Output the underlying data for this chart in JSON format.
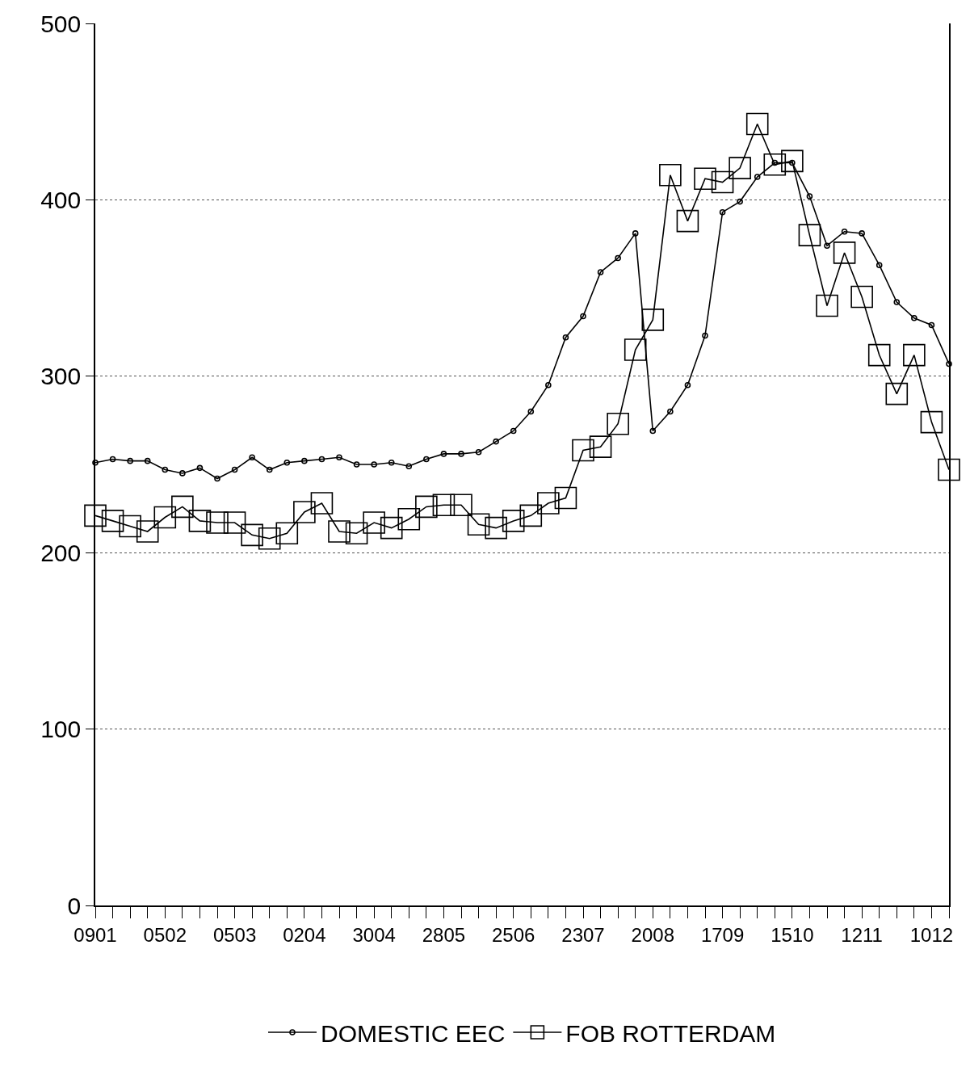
{
  "chart_data": {
    "type": "line",
    "categories": [
      "0901",
      null,
      null,
      null,
      "0502",
      null,
      null,
      null,
      "0503",
      null,
      null,
      null,
      "0204",
      null,
      null,
      null,
      "3004",
      null,
      null,
      null,
      "2805",
      null,
      null,
      null,
      "2506",
      null,
      null,
      null,
      "2307",
      null,
      null,
      null,
      "2008",
      null,
      null,
      null,
      "1709",
      null,
      null,
      null,
      "1510",
      null,
      null,
      null,
      "1211",
      null,
      null,
      null,
      "1012",
      null
    ],
    "series": [
      {
        "name": "DOMESTIC EEC",
        "color": "#000000",
        "marker": "circle",
        "values": [
          251,
          253,
          252,
          252,
          247,
          245,
          248,
          242,
          247,
          254,
          247,
          251,
          252,
          253,
          254,
          250,
          250,
          251,
          249,
          253,
          256,
          256,
          257,
          263,
          269,
          280,
          295,
          322,
          334,
          359,
          367,
          381,
          269,
          280,
          295,
          323,
          393,
          399,
          413,
          421,
          421,
          402,
          374,
          382,
          381,
          363,
          342,
          333,
          329,
          307
        ]
      },
      {
        "name": "FOB ROTTERDAM",
        "color": "#000000",
        "marker": "square",
        "values": [
          221,
          218,
          215,
          212,
          220,
          226,
          218,
          217,
          217,
          210,
          208,
          211,
          223,
          228,
          212,
          211,
          217,
          214,
          219,
          226,
          227,
          227,
          216,
          214,
          218,
          221,
          228,
          231,
          258,
          260,
          273,
          315,
          332,
          414,
          388,
          412,
          410,
          418,
          443,
          420,
          422,
          380,
          340,
          370,
          345,
          312,
          290,
          312,
          274,
          247
        ]
      }
    ],
    "ylim": [
      0,
      500
    ],
    "yticks": [
      0,
      100,
      200,
      300,
      400,
      500
    ],
    "grid": "y",
    "legend": "bottom",
    "line_style": "solid"
  }
}
